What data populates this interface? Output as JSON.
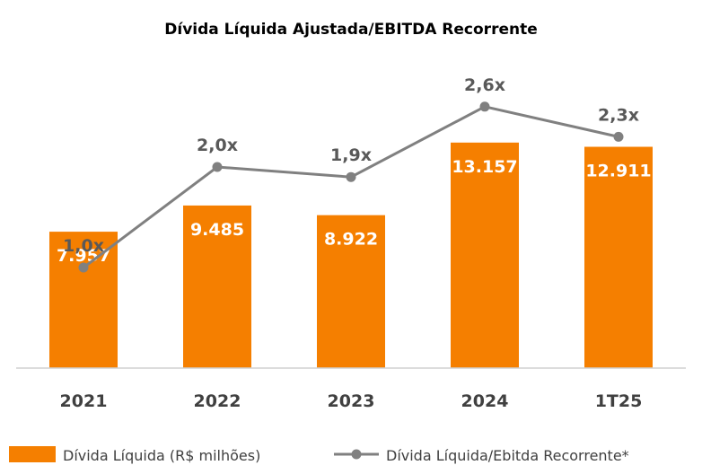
{
  "chart_data": {
    "type": "bar",
    "title": "Dívida Líquida Ajustada/EBITDA Recorrente",
    "categories": [
      "2021",
      "2022",
      "2023",
      "2024",
      "1T25"
    ],
    "series": [
      {
        "name": "Dívida Líquida (R$ milhões)",
        "kind": "bar",
        "color": "#F57F00",
        "values": [
          7957,
          9485,
          8922,
          13157,
          12911
        ],
        "labels": [
          "7.957",
          "9.485",
          "8.922",
          "13.157",
          "12.911"
        ]
      },
      {
        "name": "Dívida Líquida/Ebitda Recorrente*",
        "kind": "line",
        "color": "#808080",
        "values": [
          1.0,
          2.0,
          1.9,
          2.6,
          2.3
        ],
        "labels": [
          "1,0x",
          "2,0x",
          "1,9x",
          "2,6x",
          "2,3x"
        ]
      }
    ],
    "bar_axis_range": [
      0,
      16500
    ],
    "line_axis_range": [
      0.0,
      3.5
    ],
    "grid": false,
    "legend_position": "bottom"
  }
}
